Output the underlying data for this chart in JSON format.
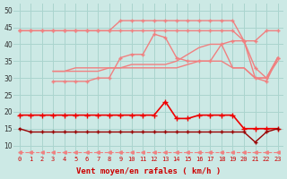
{
  "background_color": "#cce9e5",
  "grid_color": "#aad4ce",
  "x_labels": [
    "0",
    "1",
    "2",
    "3",
    "4",
    "5",
    "6",
    "7",
    "8",
    "9",
    "10",
    "11",
    "12",
    "13",
    "14",
    "15",
    "16",
    "17",
    "18",
    "19",
    "20",
    "21",
    "22",
    "23"
  ],
  "xlabel": "Vent moyen/en rafales ( km/h )",
  "ylim": [
    7,
    52
  ],
  "yticks": [
    10,
    15,
    20,
    25,
    30,
    35,
    40,
    45,
    50
  ],
  "series": [
    {
      "name": "top_pink_flat",
      "color": "#f08080",
      "marker": "+",
      "lw": 1.0,
      "markersize": 3,
      "linestyle": "-",
      "values": [
        44,
        44,
        44,
        44,
        44,
        44,
        44,
        44,
        44,
        47,
        47,
        47,
        47,
        47,
        47,
        47,
        47,
        47,
        47,
        47,
        41,
        41,
        44,
        44
      ]
    },
    {
      "name": "top_pink_declining",
      "color": "#f08080",
      "marker": "+",
      "lw": 1.0,
      "markersize": 3,
      "linestyle": "-",
      "values": [
        44,
        44,
        44,
        44,
        44,
        44,
        44,
        44,
        44,
        44,
        44,
        44,
        44,
        44,
        44,
        44,
        44,
        44,
        44,
        44,
        41,
        30,
        29,
        36
      ]
    },
    {
      "name": "mid_pink_rising1",
      "color": "#f08080",
      "marker": "+",
      "lw": 1.0,
      "markersize": 3,
      "linestyle": "-",
      "values": [
        null,
        null,
        null,
        29,
        29,
        29,
        29,
        30,
        30,
        36,
        37,
        37,
        43,
        42,
        36,
        35,
        35,
        35,
        40,
        41,
        41,
        33,
        30,
        36
      ]
    },
    {
      "name": "mid_pink_rising2",
      "color": "#f08080",
      "marker": null,
      "lw": 1.0,
      "markersize": 3,
      "linestyle": "-",
      "values": [
        null,
        null,
        null,
        32,
        32,
        33,
        33,
        33,
        33,
        33,
        34,
        34,
        34,
        34,
        35,
        37,
        39,
        40,
        40,
        33,
        33,
        30,
        30,
        36
      ]
    },
    {
      "name": "mid_pink_flat",
      "color": "#f08080",
      "marker": null,
      "lw": 1.0,
      "markersize": 3,
      "linestyle": "-",
      "values": [
        null,
        null,
        null,
        32,
        32,
        32,
        32,
        32,
        33,
        33,
        33,
        33,
        33,
        33,
        33,
        34,
        35,
        35,
        35,
        33,
        33,
        30,
        30,
        35
      ]
    },
    {
      "name": "bright_red_line",
      "color": "#ee0000",
      "marker": "+",
      "lw": 1.2,
      "markersize": 4,
      "linestyle": "-",
      "values": [
        19,
        19,
        19,
        19,
        19,
        19,
        19,
        19,
        19,
        19,
        19,
        19,
        19,
        23,
        18,
        18,
        19,
        19,
        19,
        19,
        15,
        15,
        15,
        15
      ]
    },
    {
      "name": "dark_red_line",
      "color": "#990000",
      "marker": "+",
      "lw": 1.0,
      "markersize": 3,
      "linestyle": "-",
      "values": [
        15,
        14,
        14,
        14,
        14,
        14,
        14,
        14,
        14,
        14,
        14,
        14,
        14,
        14,
        14,
        14,
        14,
        14,
        14,
        14,
        14,
        11,
        14,
        15
      ]
    },
    {
      "name": "dashed_bottom",
      "color": "#f08080",
      "marker": "<",
      "lw": 0.8,
      "markersize": 2.5,
      "linestyle": "--",
      "values": [
        8,
        8,
        8,
        8,
        8,
        8,
        8,
        8,
        8,
        8,
        8,
        8,
        8,
        8,
        8,
        8,
        8,
        8,
        8,
        8,
        8,
        8,
        8,
        8
      ]
    }
  ]
}
